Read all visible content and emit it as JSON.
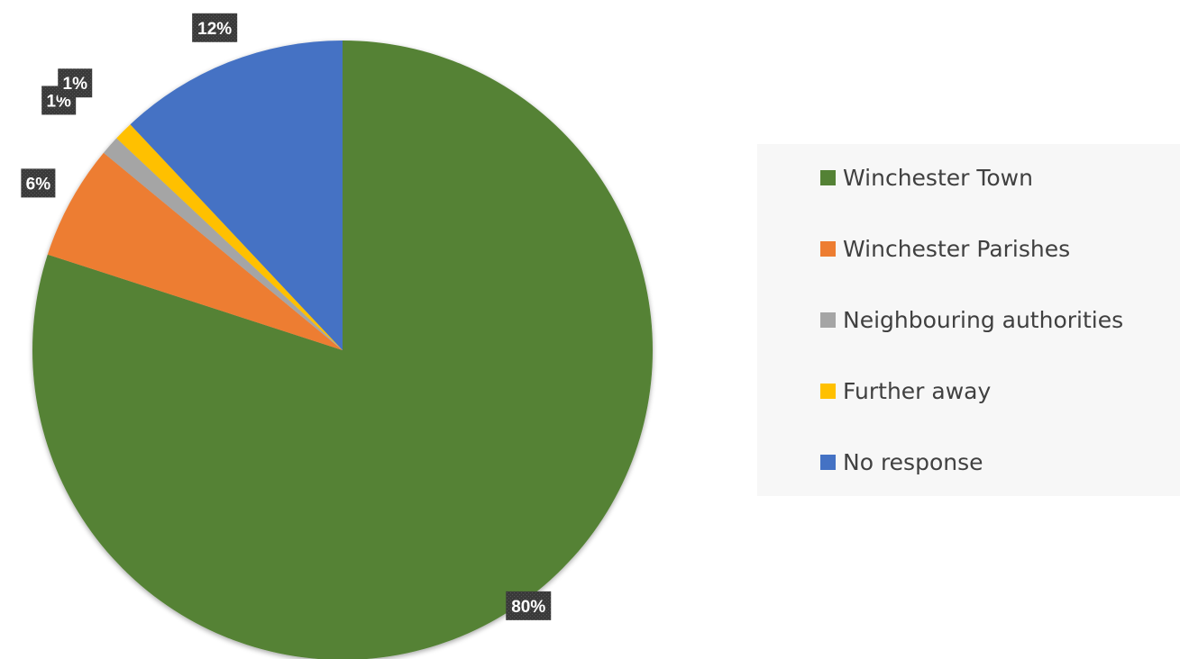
{
  "chart_data": {
    "type": "pie",
    "title": "",
    "categories": [
      "Winchester Town",
      "Winchester Parishes",
      "Neighbouring authorities",
      "Further away",
      "No response"
    ],
    "values": [
      80,
      6,
      1,
      1,
      12
    ],
    "data_labels": [
      "80%",
      "6%",
      "1%",
      "1%",
      "12%"
    ],
    "colors": [
      "#548235",
      "#ED7D31",
      "#A5A5A5",
      "#FFC000",
      "#4472C4"
    ],
    "start": "12 o'clock",
    "direction": "clockwise",
    "legend_position": "right"
  },
  "legend": {
    "items": [
      {
        "label": "Winchester Town",
        "color": "#548235"
      },
      {
        "label": "Winchester Parishes",
        "color": "#ED7D31"
      },
      {
        "label": "Neighbouring authorities",
        "color": "#A5A5A5"
      },
      {
        "label": "Further away",
        "color": "#FFC000"
      },
      {
        "label": "No response",
        "color": "#4472C4"
      }
    ]
  }
}
